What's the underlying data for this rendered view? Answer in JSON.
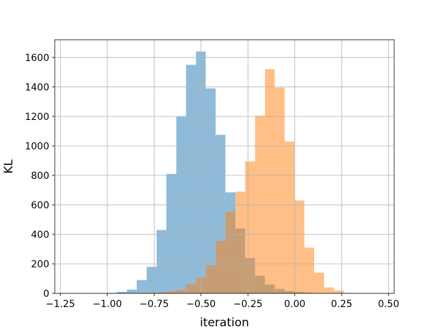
{
  "chart_data": {
    "type": "histogram",
    "title": "",
    "xlabel": "iteration",
    "ylabel": "KL",
    "xlim": [
      -1.28,
      0.53
    ],
    "ylim": [
      0,
      1720
    ],
    "grid": true,
    "legend": "none",
    "xticks": [
      -1.25,
      -1.0,
      -0.75,
      -0.5,
      -0.25,
      0.0,
      0.25,
      0.5
    ],
    "xtick_labels": [
      "−1.25",
      "−1.00",
      "−0.75",
      "−0.50",
      "−0.25",
      "0.00",
      "0.25",
      "0.50"
    ],
    "yticks": [
      0,
      200,
      400,
      600,
      800,
      1000,
      1200,
      1400,
      1600
    ],
    "ytick_labels": [
      "0",
      "200",
      "400",
      "600",
      "800",
      "1000",
      "1200",
      "1400",
      "1600"
    ],
    "series": [
      {
        "color": "#1f77b4",
        "alpha": 0.5,
        "bins": [
          [
            -1.25,
            -1.2,
            2
          ],
          [
            -1.2,
            -1.15,
            0
          ],
          [
            -1.15,
            -1.1,
            0
          ],
          [
            -1.1,
            -1.05,
            0
          ],
          [
            -1.05,
            -1.0,
            0
          ],
          [
            -1.0,
            -0.948,
            3
          ],
          [
            -0.948,
            -0.895,
            10
          ],
          [
            -0.895,
            -0.843,
            25
          ],
          [
            -0.843,
            -0.79,
            90
          ],
          [
            -0.79,
            -0.737,
            180
          ],
          [
            -0.737,
            -0.685,
            430
          ],
          [
            -0.685,
            -0.632,
            810
          ],
          [
            -0.632,
            -0.58,
            1200
          ],
          [
            -0.58,
            -0.527,
            1550
          ],
          [
            -0.527,
            -0.475,
            1640
          ],
          [
            -0.475,
            -0.422,
            1390
          ],
          [
            -0.422,
            -0.37,
            1075
          ],
          [
            -0.37,
            -0.317,
            685
          ],
          [
            -0.317,
            -0.265,
            440
          ],
          [
            -0.265,
            -0.212,
            240
          ],
          [
            -0.212,
            -0.159,
            120
          ],
          [
            -0.159,
            -0.107,
            60
          ],
          [
            -0.107,
            -0.054,
            30
          ],
          [
            -0.054,
            -0.002,
            15
          ],
          [
            -0.002,
            0.051,
            10
          ],
          [
            0.051,
            0.103,
            5
          ],
          [
            0.103,
            0.156,
            2
          ],
          [
            0.156,
            0.208,
            1
          ]
        ]
      },
      {
        "color": "#ff7f0e",
        "alpha": 0.5,
        "bins": [
          [
            -0.895,
            -0.843,
            1
          ],
          [
            -0.843,
            -0.79,
            3
          ],
          [
            -0.79,
            -0.737,
            5
          ],
          [
            -0.737,
            -0.685,
            8
          ],
          [
            -0.685,
            -0.632,
            15
          ],
          [
            -0.632,
            -0.58,
            25
          ],
          [
            -0.58,
            -0.527,
            60
          ],
          [
            -0.527,
            -0.475,
            105
          ],
          [
            -0.475,
            -0.422,
            190
          ],
          [
            -0.422,
            -0.37,
            355
          ],
          [
            -0.37,
            -0.317,
            555
          ],
          [
            -0.317,
            -0.265,
            690
          ],
          [
            -0.265,
            -0.212,
            895
          ],
          [
            -0.212,
            -0.159,
            1205
          ],
          [
            -0.159,
            -0.107,
            1520
          ],
          [
            -0.107,
            -0.054,
            1395
          ],
          [
            -0.054,
            -0.002,
            1030
          ],
          [
            -0.002,
            0.051,
            630
          ],
          [
            0.051,
            0.103,
            310
          ],
          [
            0.103,
            0.156,
            140
          ],
          [
            0.156,
            0.208,
            40
          ],
          [
            0.208,
            0.261,
            20
          ],
          [
            0.261,
            0.313,
            3
          ],
          [
            0.313,
            0.366,
            1
          ],
          [
            0.366,
            0.418,
            0
          ],
          [
            0.418,
            0.471,
            1
          ]
        ]
      }
    ]
  }
}
